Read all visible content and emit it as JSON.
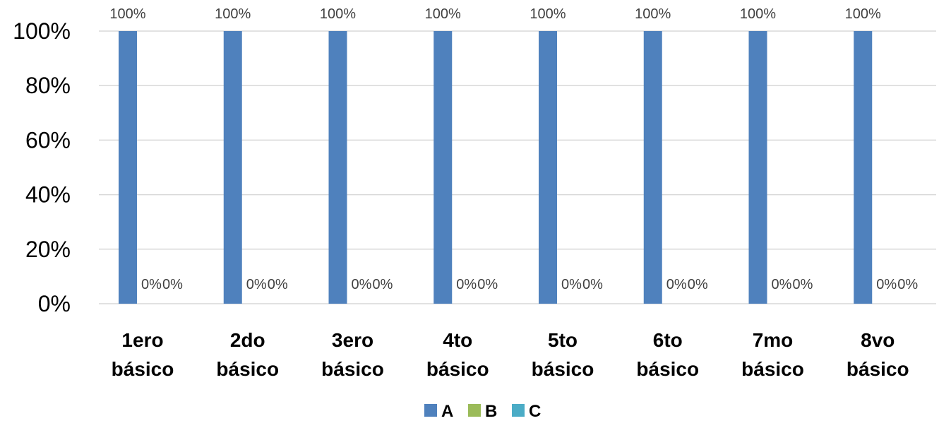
{
  "chart_data": {
    "type": "bar",
    "title": "",
    "xlabel": "",
    "ylabel": "",
    "ylim": [
      0,
      100
    ],
    "y_ticks": [
      "0%",
      "20%",
      "40%",
      "60%",
      "80%",
      "100%"
    ],
    "y_tick_values": [
      0,
      20,
      40,
      60,
      80,
      100
    ],
    "categories": [
      [
        "1ero",
        "básico"
      ],
      [
        "2do",
        "básico"
      ],
      [
        "3ero",
        "básico"
      ],
      [
        "4to",
        "básico"
      ],
      [
        "5to",
        "básico"
      ],
      [
        "6to",
        "básico"
      ],
      [
        "7mo",
        "básico"
      ],
      [
        "8vo",
        "básico"
      ]
    ],
    "series": [
      {
        "name": "A",
        "color": "#4f81bd",
        "values": [
          100,
          100,
          100,
          100,
          100,
          100,
          100,
          100
        ],
        "labels": [
          "100%",
          "100%",
          "100%",
          "100%",
          "100%",
          "100%",
          "100%",
          "100%"
        ]
      },
      {
        "name": "B",
        "color": "#9bbb59",
        "values": [
          0,
          0,
          0,
          0,
          0,
          0,
          0,
          0
        ],
        "labels": [
          "0%",
          "0%",
          "0%",
          "0%",
          "0%",
          "0%",
          "0%",
          "0%"
        ]
      },
      {
        "name": "C",
        "color": "#4bacc6",
        "values": [
          0,
          0,
          0,
          0,
          0,
          0,
          0,
          0
        ],
        "labels": [
          "0%",
          "0%",
          "0%",
          "0%",
          "0%",
          "0%",
          "0%",
          "0%"
        ]
      }
    ],
    "grid": true,
    "legend_position": "bottom"
  }
}
